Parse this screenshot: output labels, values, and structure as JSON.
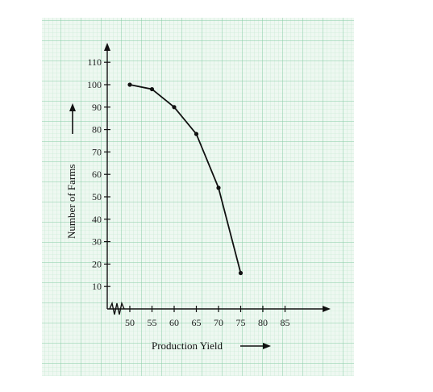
{
  "chart_data": {
    "type": "line",
    "xlabel": "Production Yield",
    "ylabel": "Number of Farms",
    "x_ticks": [
      "50",
      "55",
      "60",
      "65",
      "70",
      "75",
      "80",
      "85"
    ],
    "y_ticks": [
      "10",
      "20",
      "30",
      "40",
      "50",
      "60",
      "70",
      "80",
      "90",
      "100",
      "110"
    ],
    "xlim": [
      45,
      90
    ],
    "ylim": [
      0,
      115
    ],
    "x_axis_break": true,
    "grid": true,
    "series": [
      {
        "x": [
          50,
          55,
          60,
          65,
          70,
          75
        ],
        "y": [
          100,
          98,
          90,
          78,
          54,
          16
        ]
      }
    ],
    "colors": {
      "grid_minor": "#bfe6cf",
      "grid_major": "#86cda5",
      "paper": "#eef8f1",
      "line": "#111111"
    }
  }
}
